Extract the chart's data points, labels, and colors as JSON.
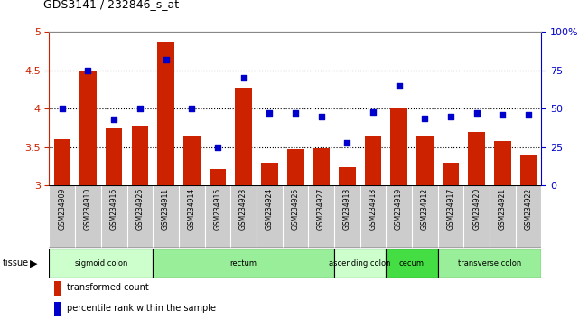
{
  "title": "GDS3141 / 232846_s_at",
  "samples": [
    "GSM234909",
    "GSM234910",
    "GSM234916",
    "GSM234926",
    "GSM234911",
    "GSM234914",
    "GSM234915",
    "GSM234923",
    "GSM234924",
    "GSM234925",
    "GSM234927",
    "GSM234913",
    "GSM234918",
    "GSM234919",
    "GSM234912",
    "GSM234917",
    "GSM234920",
    "GSM234921",
    "GSM234922"
  ],
  "bar_values": [
    3.6,
    4.5,
    3.75,
    3.78,
    4.88,
    3.65,
    3.22,
    4.27,
    3.3,
    3.48,
    3.49,
    3.24,
    3.65,
    4.0,
    3.65,
    3.3,
    3.7,
    3.58,
    3.4
  ],
  "dot_values": [
    50,
    75,
    43,
    50,
    82,
    50,
    25,
    70,
    47,
    47,
    45,
    28,
    48,
    65,
    44,
    45,
    47,
    46,
    46
  ],
  "ylim_left": [
    3.0,
    5.0
  ],
  "ylim_right": [
    0,
    100
  ],
  "yticks_left": [
    3.0,
    3.5,
    4.0,
    4.5,
    5.0
  ],
  "yticks_right": [
    0,
    25,
    50,
    75,
    100
  ],
  "bar_color": "#cc2200",
  "dot_color": "#0000cc",
  "tissue_groups": [
    {
      "label": "sigmoid colon",
      "start": 0,
      "end": 4,
      "color": "#ccffcc"
    },
    {
      "label": "rectum",
      "start": 4,
      "end": 11,
      "color": "#99ee99"
    },
    {
      "label": "ascending colon",
      "start": 11,
      "end": 13,
      "color": "#ccffcc"
    },
    {
      "label": "cecum",
      "start": 13,
      "end": 15,
      "color": "#44dd44"
    },
    {
      "label": "transverse colon",
      "start": 15,
      "end": 19,
      "color": "#99ee99"
    }
  ],
  "legend_bar": "transformed count",
  "legend_dot": "percentile rank within the sample",
  "xtick_bg": "#cccccc",
  "spine_color": "#888888"
}
